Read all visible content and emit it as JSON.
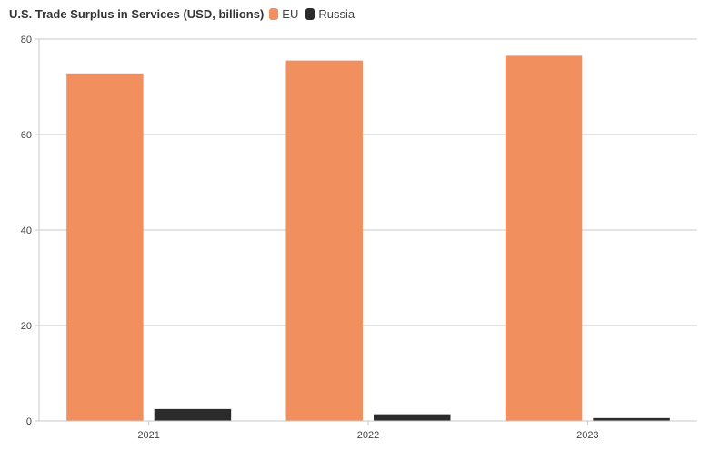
{
  "chart_data": {
    "type": "bar",
    "title": "U.S. Trade Surplus in Services (USD, billions)",
    "categories": [
      "2021",
      "2022",
      "2023"
    ],
    "series": [
      {
        "name": "EU",
        "color": "#f28f5e",
        "values": [
          72.8,
          75.5,
          76.5
        ]
      },
      {
        "name": "Russia",
        "color": "#2b2b2b",
        "values": [
          2.5,
          1.4,
          0.6
        ]
      }
    ],
    "ylim": [
      0,
      80
    ],
    "yticks": [
      0,
      20,
      40,
      60,
      80
    ],
    "xlabel": "",
    "ylabel": "",
    "grid": true,
    "legend_position": "top-left"
  }
}
